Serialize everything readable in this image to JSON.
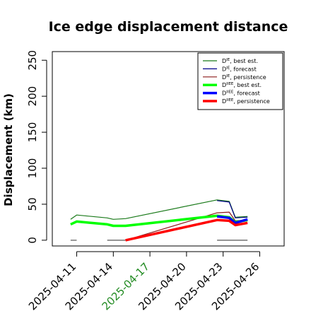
{
  "chart_data": {
    "type": "line",
    "title": "Ice edge displacement distance",
    "xlabel": "",
    "ylabel": "Displacement (km)",
    "x_ticks": [
      "2025-04-11",
      "2025-04-14",
      "2025-04-17",
      "2025-04-20",
      "2025-04-23",
      "2025-04-26"
    ],
    "highlighted_tick": "2025-04-17",
    "highlight_color": "#228B22",
    "y_ticks": [
      0,
      50,
      100,
      150,
      200,
      250
    ],
    "xlim": [
      "2025-04-09",
      "2025-04-28"
    ],
    "ylim": [
      -8,
      262
    ],
    "grid": false,
    "legend_position": "top-right",
    "series": [
      {
        "name": "D^IE, best est.",
        "color": "#1a7a1a",
        "width": 1.2,
        "points": [
          [
            "2025-04-10T12:00",
            29
          ],
          [
            "2025-04-11",
            35
          ],
          [
            "2025-04-13T12:00",
            31
          ],
          [
            "2025-04-14",
            29
          ],
          [
            "2025-04-15",
            30
          ],
          [
            "2025-04-22T12:00",
            56
          ],
          [
            "2025-04-23T12:00",
            54
          ],
          [
            "2025-04-24",
            32
          ],
          [
            "2025-04-25",
            33
          ]
        ]
      },
      {
        "name": "D^IE, forecast",
        "color": "#00008b",
        "width": 1.2,
        "points": [
          [
            "2025-04-22T12:00",
            55
          ],
          [
            "2025-04-23T12:00",
            53
          ],
          [
            "2025-04-24",
            31
          ],
          [
            "2025-04-25",
            32
          ]
        ]
      },
      {
        "name": "D^IE, persistence",
        "color": "#8b1a1a",
        "width": 1.2,
        "points": [
          [
            "2025-04-15",
            0
          ],
          [
            "2025-04-22T12:00",
            38
          ],
          [
            "2025-04-23T12:00",
            39
          ],
          [
            "2025-04-24",
            27
          ],
          [
            "2025-04-25",
            28
          ]
        ]
      },
      {
        "name": "D^IIEE, best est.",
        "color": "#00ff00",
        "width": 3.5,
        "points": [
          [
            "2025-04-10T12:00",
            22
          ],
          [
            "2025-04-11",
            26
          ],
          [
            "2025-04-13T12:00",
            22
          ],
          [
            "2025-04-14",
            20
          ],
          [
            "2025-04-15",
            20
          ],
          [
            "2025-04-22T12:00",
            34
          ],
          [
            "2025-04-23T12:00",
            32
          ],
          [
            "2025-04-24",
            25
          ],
          [
            "2025-04-25",
            28
          ]
        ]
      },
      {
        "name": "D^IIEE, forecast",
        "color": "#0000ff",
        "width": 3.5,
        "points": [
          [
            "2025-04-22T12:00",
            33
          ],
          [
            "2025-04-23T12:00",
            31
          ],
          [
            "2025-04-24",
            24
          ],
          [
            "2025-04-25",
            29
          ]
        ]
      },
      {
        "name": "D^IIEE, persistence",
        "color": "#ff0000",
        "width": 3.5,
        "points": [
          [
            "2025-04-15",
            0
          ],
          [
            "2025-04-22T12:00",
            28
          ],
          [
            "2025-04-23T12:00",
            27
          ],
          [
            "2025-04-24",
            21
          ],
          [
            "2025-04-25",
            24
          ]
        ]
      },
      {
        "name": "",
        "color": "#555555",
        "width": 1.2,
        "show_in_legend": false,
        "points": [
          [
            "2025-04-10T12:00",
            0
          ],
          [
            "2025-04-11",
            0
          ]
        ]
      },
      {
        "name": "",
        "color": "#555555",
        "width": 1.2,
        "show_in_legend": false,
        "points": [
          [
            "2025-04-13T12:00",
            0
          ],
          [
            "2025-04-15",
            0
          ]
        ]
      },
      {
        "name": "",
        "color": "#555555",
        "width": 1.2,
        "show_in_legend": false,
        "points": [
          [
            "2025-04-22T12:00",
            0
          ],
          [
            "2025-04-25",
            0
          ]
        ]
      }
    ]
  }
}
